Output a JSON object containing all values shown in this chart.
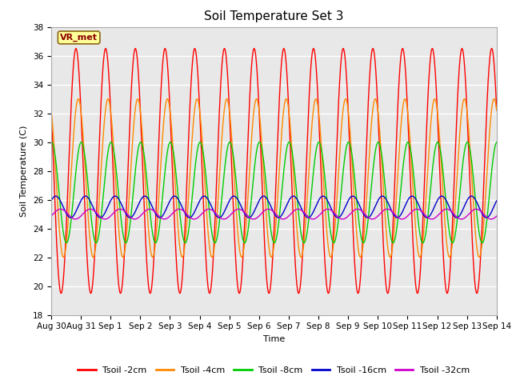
{
  "title": "Soil Temperature Set 3",
  "xlabel": "Time",
  "ylabel": "Soil Temperature (C)",
  "ylim": [
    18,
    38
  ],
  "yticks": [
    18,
    20,
    22,
    24,
    26,
    28,
    30,
    32,
    34,
    36,
    38
  ],
  "background_color": "#e8e8e8",
  "series": [
    {
      "label": "Tsoil -2cm",
      "color": "#ff0000",
      "amplitude": 8.5,
      "mean": 28.0,
      "phase_shift": 0.0
    },
    {
      "label": "Tsoil -4cm",
      "color": "#ff8800",
      "amplitude": 5.5,
      "mean": 27.5,
      "phase_shift": 0.08
    },
    {
      "label": "Tsoil -8cm",
      "color": "#00cc00",
      "amplitude": 3.5,
      "mean": 26.5,
      "phase_shift": 0.18
    },
    {
      "label": "Tsoil -16cm",
      "color": "#0000cc",
      "amplitude": 0.75,
      "mean": 25.5,
      "phase_shift": 0.32
    },
    {
      "label": "Tsoil -32cm",
      "color": "#cc00cc",
      "amplitude": 0.35,
      "mean": 25.0,
      "phase_shift": 0.48
    }
  ],
  "x_tick_labels": [
    "Aug 30",
    "Aug 31",
    "Sep 1",
    "Sep 2",
    "Sep 3",
    "Sep 4",
    "Sep 5",
    "Sep 6",
    "Sep 7",
    "Sep 8",
    "Sep 9",
    "Sep 10",
    "Sep 11",
    "Sep 12",
    "Sep 13",
    "Sep 14"
  ],
  "annotation_text": "VR_met",
  "title_fontsize": 11,
  "axis_fontsize": 8,
  "tick_fontsize": 7.5,
  "legend_fontsize": 8,
  "figwidth": 6.4,
  "figheight": 4.8,
  "dpi": 100
}
